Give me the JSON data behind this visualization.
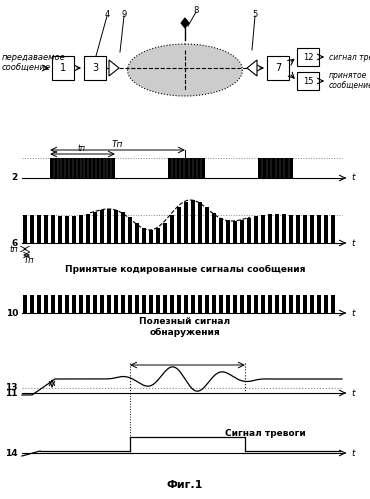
{
  "title": "Фиг.1",
  "bg_color": "#ffffff",
  "text_color": "#000000",
  "label_tx": "передаваемое\nсообщение",
  "label_alarm": "сигнал тревоги",
  "label_rx": "принятое\nсообщение",
  "Tn_label": "Tп",
  "tn_label": "tп",
  "text_coded": "Принятые кодированные сигналы сообщения",
  "text_useful": "Полезный сигнал\nобнаружения",
  "text_alarm": "Сигнал тревоги"
}
